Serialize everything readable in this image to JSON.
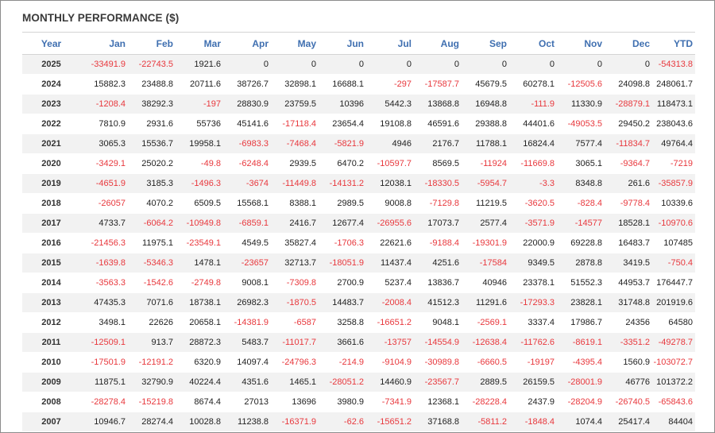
{
  "title": "MONTHLY PERFORMANCE ($)",
  "colors": {
    "negative": "#e8383d",
    "header": "#3f6fb0",
    "stripe": "#f2f2f2"
  },
  "chart_data": {
    "type": "table",
    "columns": [
      "Year",
      "Jan",
      "Feb",
      "Mar",
      "Apr",
      "May",
      "Jun",
      "Jul",
      "Aug",
      "Sep",
      "Oct",
      "Nov",
      "Dec",
      "YTD"
    ],
    "rows": [
      [
        "2025",
        "-33491.9",
        "-22743.5",
        "1921.6",
        "0",
        "0",
        "0",
        "0",
        "0",
        "0",
        "0",
        "0",
        "0",
        "-54313.8"
      ],
      [
        "2024",
        "15882.3",
        "23488.8",
        "20711.6",
        "38726.7",
        "32898.1",
        "16688.1",
        "-297",
        "-17587.7",
        "45679.5",
        "60278.1",
        "-12505.6",
        "24098.8",
        "248061.7"
      ],
      [
        "2023",
        "-1208.4",
        "38292.3",
        "-197",
        "28830.9",
        "23759.5",
        "10396",
        "5442.3",
        "13868.8",
        "16948.8",
        "-111.9",
        "11330.9",
        "-28879.1",
        "118473.1"
      ],
      [
        "2022",
        "7810.9",
        "2931.6",
        "55736",
        "45141.6",
        "-17118.4",
        "23654.4",
        "19108.8",
        "46591.6",
        "29388.8",
        "44401.6",
        "-49053.5",
        "29450.2",
        "238043.6"
      ],
      [
        "2021",
        "3065.3",
        "15536.7",
        "19958.1",
        "-6983.3",
        "-7468.4",
        "-5821.9",
        "4946",
        "2176.7",
        "11788.1",
        "16824.4",
        "7577.4",
        "-11834.7",
        "49764.4"
      ],
      [
        "2020",
        "-3429.1",
        "25020.2",
        "-49.8",
        "-6248.4",
        "2939.5",
        "6470.2",
        "-10597.7",
        "8569.5",
        "-11924",
        "-11669.8",
        "3065.1",
        "-9364.7",
        "-7219"
      ],
      [
        "2019",
        "-4651.9",
        "3185.3",
        "-1496.3",
        "-3674",
        "-11449.8",
        "-14131.2",
        "12038.1",
        "-18330.5",
        "-5954.7",
        "-3.3",
        "8348.8",
        "261.6",
        "-35857.9"
      ],
      [
        "2018",
        "-26057",
        "4070.2",
        "6509.5",
        "15568.1",
        "8388.1",
        "2989.5",
        "9008.8",
        "-7129.8",
        "11219.5",
        "-3620.5",
        "-828.4",
        "-9778.4",
        "10339.6"
      ],
      [
        "2017",
        "4733.7",
        "-6064.2",
        "-10949.8",
        "-6859.1",
        "2416.7",
        "12677.4",
        "-26955.6",
        "17073.7",
        "2577.4",
        "-3571.9",
        "-14577",
        "18528.1",
        "-10970.6"
      ],
      [
        "2016",
        "-21456.3",
        "11975.1",
        "-23549.1",
        "4549.5",
        "35827.4",
        "-1706.3",
        "22621.6",
        "-9188.4",
        "-19301.9",
        "22000.9",
        "69228.8",
        "16483.7",
        "107485"
      ],
      [
        "2015",
        "-1639.8",
        "-5346.3",
        "1478.1",
        "-23657",
        "32713.7",
        "-18051.9",
        "11437.4",
        "4251.6",
        "-17584",
        "9349.5",
        "2878.8",
        "3419.5",
        "-750.4"
      ],
      [
        "2014",
        "-3563.3",
        "-1542.6",
        "-2749.8",
        "9008.1",
        "-7309.8",
        "2700.9",
        "5237.4",
        "13836.7",
        "40946",
        "23378.1",
        "51552.3",
        "44953.7",
        "176447.7"
      ],
      [
        "2013",
        "47435.3",
        "7071.6",
        "18738.1",
        "26982.3",
        "-1870.5",
        "14483.7",
        "-2008.4",
        "41512.3",
        "11291.6",
        "-17293.3",
        "23828.1",
        "31748.8",
        "201919.6"
      ],
      [
        "2012",
        "3498.1",
        "22626",
        "20658.1",
        "-14381.9",
        "-6587",
        "3258.8",
        "-16651.2",
        "9048.1",
        "-2569.1",
        "3337.4",
        "17986.7",
        "24356",
        "64580"
      ],
      [
        "2011",
        "-12509.1",
        "913.7",
        "28872.3",
        "5483.7",
        "-11017.7",
        "3661.6",
        "-13757",
        "-14554.9",
        "-12638.4",
        "-11762.6",
        "-8619.1",
        "-3351.2",
        "-49278.7"
      ],
      [
        "2010",
        "-17501.9",
        "-12191.2",
        "6320.9",
        "14097.4",
        "-24796.3",
        "-214.9",
        "-9104.9",
        "-30989.8",
        "-6660.5",
        "-19197",
        "-4395.4",
        "1560.9",
        "-103072.7"
      ],
      [
        "2009",
        "11875.1",
        "32790.9",
        "40224.4",
        "4351.6",
        "1465.1",
        "-28051.2",
        "14460.9",
        "-23567.7",
        "2889.5",
        "26159.5",
        "-28001.9",
        "46776",
        "101372.2"
      ],
      [
        "2008",
        "-28278.4",
        "-15219.8",
        "8674.4",
        "27013",
        "13696",
        "3980.9",
        "-7341.9",
        "12368.1",
        "-28228.4",
        "2437.9",
        "-28204.9",
        "-26740.5",
        "-65843.6"
      ],
      [
        "2007",
        "10946.7",
        "28274.4",
        "10028.8",
        "11238.8",
        "-16371.9",
        "-62.6",
        "-15651.2",
        "37168.8",
        "-5811.2",
        "-1848.4",
        "1074.4",
        "25417.4",
        "84404"
      ]
    ]
  }
}
